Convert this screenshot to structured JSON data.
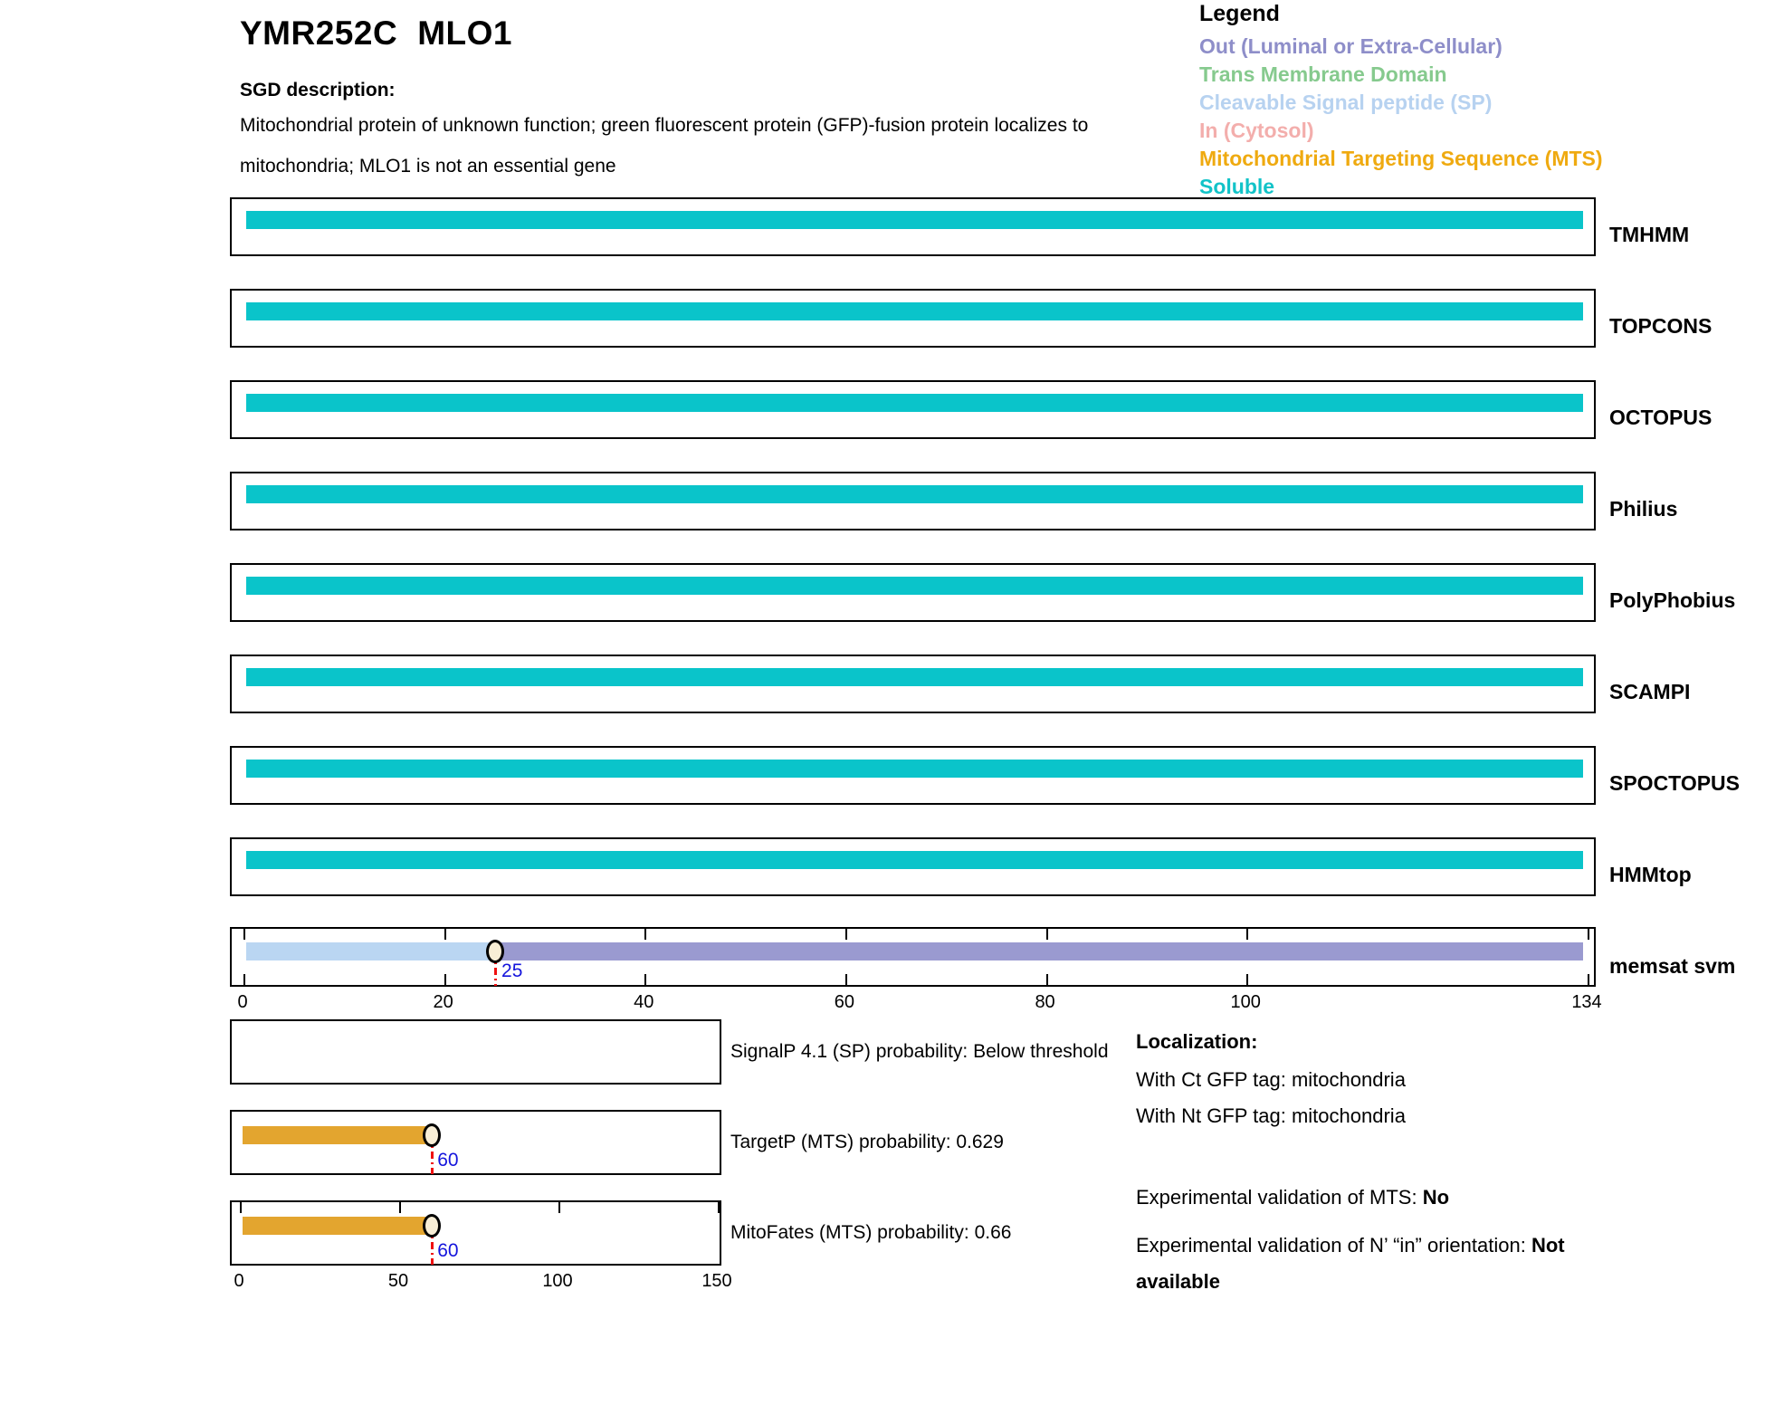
{
  "header": {
    "gene_id": "YMR252C",
    "gene_name": "MLO1",
    "sgd_label": "SGD description:",
    "description": "Mitochondrial protein of unknown function; green fluorescent protein (GFP)-fusion protein localizes to mitochondria; MLO1 is not an essential gene"
  },
  "legend": {
    "title": "Legend",
    "entries": [
      {
        "label": "Out (Luminal or Extra-Cellular)",
        "color": "#8e8ec9",
        "type": "out"
      },
      {
        "label": "Trans Membrane Domain",
        "color": "#86ca8e",
        "type": "tm"
      },
      {
        "label": "Cleavable Signal peptide (SP)",
        "color": "#b7d2f0",
        "type": "sp"
      },
      {
        "label": "In (Cytosol)",
        "color": "#f3aeac",
        "type": "in"
      },
      {
        "label": "Mitochondrial Targeting Sequence (MTS)",
        "color": "#efaa10",
        "type": "mts"
      },
      {
        "label": "Soluble",
        "color": "#12c3c8",
        "type": "soluble"
      }
    ]
  },
  "chart_data": {
    "type": "bar",
    "title": "Membrane topology predictions for YMR252C MLO1",
    "sequence_axis": {
      "min": 0,
      "max": 134,
      "ticks": [
        0,
        20,
        40,
        60,
        80,
        100,
        134
      ],
      "unit": "residue"
    },
    "segment_colors": {
      "soluble": "#0ac4ca",
      "sp": "#bad6f2",
      "out": "#9a9ad0",
      "mts": "#e3a52f"
    },
    "tracks": [
      {
        "name": "TMHMM",
        "segments": [
          {
            "start": 0,
            "end": 134,
            "type": "soluble"
          }
        ]
      },
      {
        "name": "TOPCONS",
        "segments": [
          {
            "start": 0,
            "end": 134,
            "type": "soluble"
          }
        ]
      },
      {
        "name": "OCTOPUS",
        "segments": [
          {
            "start": 0,
            "end": 134,
            "type": "soluble"
          }
        ]
      },
      {
        "name": "Philius",
        "segments": [
          {
            "start": 0,
            "end": 134,
            "type": "soluble"
          }
        ]
      },
      {
        "name": "PolyPhobius",
        "segments": [
          {
            "start": 0,
            "end": 134,
            "type": "soluble"
          }
        ]
      },
      {
        "name": "SCAMPI",
        "segments": [
          {
            "start": 0,
            "end": 134,
            "type": "soluble"
          }
        ]
      },
      {
        "name": "SPOCTOPUS",
        "segments": [
          {
            "start": 0,
            "end": 134,
            "type": "soluble"
          }
        ]
      },
      {
        "name": "HMMtop",
        "segments": [
          {
            "start": 0,
            "end": 134,
            "type": "soluble"
          }
        ]
      },
      {
        "name": "memsat svm",
        "boundary_ticks": true,
        "segments": [
          {
            "start": 0,
            "end": 25,
            "type": "sp"
          },
          {
            "start": 25,
            "end": 134,
            "type": "out"
          }
        ],
        "marker": {
          "pos": 25,
          "label": "25"
        }
      }
    ],
    "probability_axis": {
      "min": 0,
      "max": 150,
      "ticks": [
        0,
        50,
        100,
        150
      ]
    },
    "probability_plots": [
      {
        "name": "SignalP 4.1 (SP)",
        "caption": "SignalP 4.1 (SP) probability: Below threshold",
        "value": "Below threshold",
        "segments": []
      },
      {
        "name": "TargetP (MTS)",
        "caption": "TargetP (MTS) probability: 0.629",
        "value": 0.629,
        "segments": [
          {
            "start": 0,
            "end": 60,
            "type": "mts"
          }
        ],
        "marker": {
          "pos": 60,
          "label": "60"
        }
      },
      {
        "name": "MitoFates (MTS)",
        "caption": "MitoFates (MTS) probability: 0.66",
        "value": 0.66,
        "segments": [
          {
            "start": 0,
            "end": 60,
            "type": "mts"
          }
        ],
        "marker": {
          "pos": 60,
          "label": "60"
        },
        "boundary_ticks": true
      }
    ]
  },
  "info": {
    "localization_title": "Localization:",
    "lines": [
      "With Ct GFP tag: mitochondria",
      "With Nt GFP tag: mitochondria"
    ],
    "mts_validation": {
      "prefix": "Experimental validation of MTS: ",
      "bold": "No"
    },
    "orientation_validation": {
      "prefix": "Experimental validation of N’ “in” orientation: ",
      "bold": "Not available"
    }
  },
  "marker_style": {
    "fill": "#f8eed6",
    "line_color": "#ef1010",
    "label_color": "#1414dc"
  }
}
